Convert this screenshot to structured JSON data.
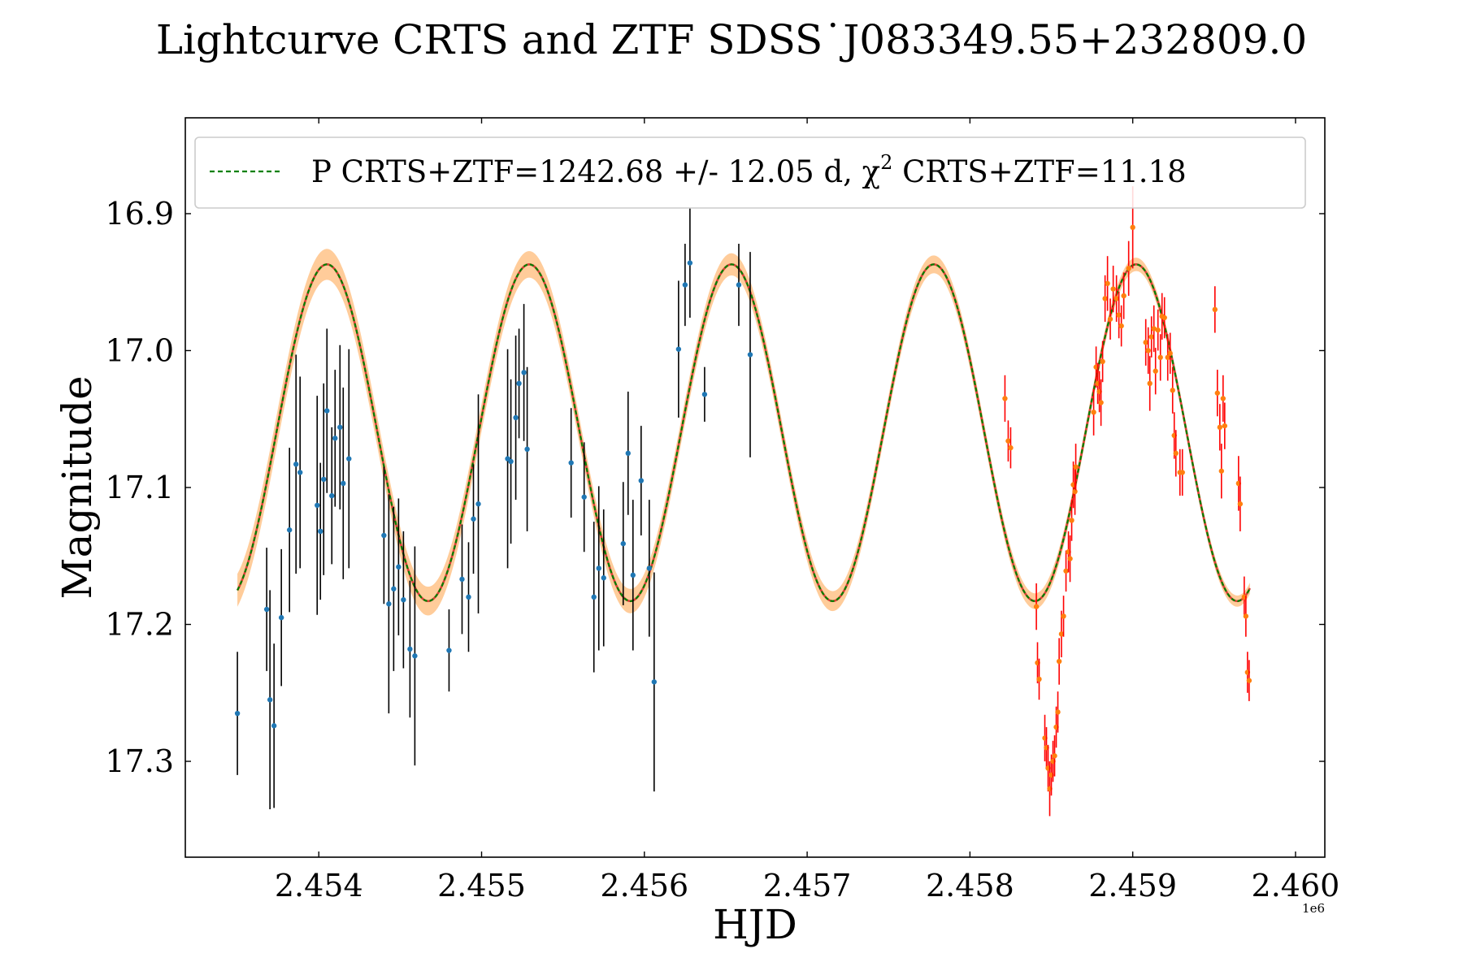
{
  "chart_data": {
    "type": "scatter",
    "title": "Lightcurve CRTS and ZTF SDSS˙J083349.55+232809.0",
    "xlabel": "HJD",
    "ylabel": "Magnitude",
    "x_offset_label": "1e6",
    "x_scale": 1000000,
    "xlim": [
      2453180,
      2460180
    ],
    "ylim": [
      17.37,
      16.83
    ],
    "y_inverted": true,
    "x_ticks": [
      2454000,
      2455000,
      2456000,
      2457000,
      2458000,
      2459000,
      2460000
    ],
    "x_tick_labels": [
      "2.454",
      "2.455",
      "2.456",
      "2.457",
      "2.458",
      "2.459",
      "2.460"
    ],
    "y_ticks": [
      16.9,
      17.0,
      17.1,
      17.2,
      17.3
    ],
    "y_tick_labels": [
      "16.9",
      "17.0",
      "17.1",
      "17.2",
      "17.3"
    ],
    "legend": {
      "location": "upper-left",
      "label_prefix": "P CRTS+ZTF=1242.68 +/- 12.05 d, ",
      "chi_symbol": "χ",
      "chi_exponent": "2",
      "label_suffix": " CRTS+ZTF=11.18"
    },
    "model": {
      "name": "P CRTS+ZTF=1242.68 +/- 12.05 d, χ2 CRTS+ZTF=11.18",
      "period": 1242.68,
      "period_err": 12.05,
      "chi2": 11.18,
      "mean": 17.06,
      "amplitude": 0.123,
      "phase_zero_epoch": 2454050,
      "x_range": [
        2453500,
        2459720
      ],
      "band_width_start": 0.012,
      "band_width_end": 0.004,
      "line_color": "#008000",
      "center_color": "#d62728",
      "band_color": "#ffbb78"
    },
    "series": [
      {
        "name": "CRTS",
        "marker_color": "#1f77b4",
        "errorbar_color": "#000000",
        "points": [
          [
            2453500,
            17.265,
            0.045
          ],
          [
            2453680,
            17.189,
            0.045
          ],
          [
            2453700,
            17.255,
            0.08
          ],
          [
            2453725,
            17.274,
            0.06
          ],
          [
            2453770,
            17.195,
            0.05
          ],
          [
            2453820,
            17.131,
            0.06
          ],
          [
            2453860,
            17.083,
            0.08
          ],
          [
            2453885,
            17.089,
            0.07
          ],
          [
            2453990,
            17.113,
            0.08
          ],
          [
            2454010,
            17.132,
            0.05
          ],
          [
            2454030,
            17.094,
            0.07
          ],
          [
            2454050,
            17.044,
            0.06
          ],
          [
            2454080,
            17.106,
            0.05
          ],
          [
            2454100,
            17.064,
            0.05
          ],
          [
            2454130,
            17.056,
            0.06
          ],
          [
            2454150,
            17.097,
            0.07
          ],
          [
            2454185,
            17.079,
            0.08
          ],
          [
            2454400,
            17.135,
            0.05
          ],
          [
            2454430,
            17.185,
            0.08
          ],
          [
            2454460,
            17.174,
            0.06
          ],
          [
            2454490,
            17.158,
            0.05
          ],
          [
            2454520,
            17.182,
            0.05
          ],
          [
            2454560,
            17.218,
            0.05
          ],
          [
            2454590,
            17.223,
            0.08
          ],
          [
            2454800,
            17.219,
            0.03
          ],
          [
            2454880,
            17.167,
            0.04
          ],
          [
            2454920,
            17.18,
            0.04
          ],
          [
            2454950,
            17.123,
            0.04
          ],
          [
            2454980,
            17.112,
            0.08
          ],
          [
            2455160,
            17.079,
            0.08
          ],
          [
            2455180,
            17.081,
            0.06
          ],
          [
            2455210,
            17.049,
            0.06
          ],
          [
            2455230,
            17.024,
            0.04
          ],
          [
            2455260,
            17.016,
            0.05
          ],
          [
            2455280,
            17.072,
            0.06
          ],
          [
            2455550,
            17.082,
            0.04
          ],
          [
            2455630,
            17.107,
            0.04
          ],
          [
            2455690,
            17.18,
            0.055
          ],
          [
            2455720,
            17.159,
            0.06
          ],
          [
            2455750,
            17.166,
            0.05
          ],
          [
            2455870,
            17.141,
            0.045
          ],
          [
            2455900,
            17.075,
            0.045
          ],
          [
            2455930,
            17.164,
            0.055
          ],
          [
            2455980,
            17.095,
            0.04
          ],
          [
            2456030,
            17.159,
            0.05
          ],
          [
            2456060,
            17.242,
            0.08
          ],
          [
            2456210,
            16.999,
            0.05
          ],
          [
            2456250,
            16.952,
            0.03
          ],
          [
            2456280,
            16.936,
            0.04
          ],
          [
            2456370,
            17.032,
            0.02
          ],
          [
            2456580,
            16.952,
            0.03
          ],
          [
            2456650,
            17.003,
            0.075
          ]
        ]
      },
      {
        "name": "ZTF",
        "marker_color": "#ff7f0e",
        "errorbar_color": "#ff0000",
        "points": [
          [
            2458215,
            17.035,
            0.017
          ],
          [
            2458235,
            17.066,
            0.015
          ],
          [
            2458250,
            17.071,
            0.015
          ],
          [
            2458408,
            17.187,
            0.017
          ],
          [
            2458415,
            17.228,
            0.015
          ],
          [
            2458425,
            17.24,
            0.015
          ],
          [
            2458460,
            17.283,
            0.017
          ],
          [
            2458470,
            17.29,
            0.015
          ],
          [
            2458480,
            17.305,
            0.017
          ],
          [
            2458490,
            17.32,
            0.02
          ],
          [
            2458500,
            17.31,
            0.015
          ],
          [
            2458510,
            17.3,
            0.015
          ],
          [
            2458520,
            17.296,
            0.015
          ],
          [
            2458530,
            17.275,
            0.015
          ],
          [
            2458540,
            17.264,
            0.015
          ],
          [
            2458548,
            17.227,
            0.017
          ],
          [
            2458562,
            17.207,
            0.017
          ],
          [
            2458575,
            17.194,
            0.015
          ],
          [
            2458590,
            17.161,
            0.015
          ],
          [
            2458605,
            17.147,
            0.015
          ],
          [
            2458615,
            17.152,
            0.017
          ],
          [
            2458625,
            17.124,
            0.015
          ],
          [
            2458635,
            17.098,
            0.017
          ],
          [
            2458645,
            17.103,
            0.017
          ],
          [
            2458650,
            17.085,
            0.017
          ],
          [
            2458760,
            17.045,
            0.017
          ],
          [
            2458775,
            17.012,
            0.015
          ],
          [
            2458785,
            17.024,
            0.015
          ],
          [
            2458795,
            17.03,
            0.015
          ],
          [
            2458805,
            17.038,
            0.017
          ],
          [
            2458815,
            17.008,
            0.015
          ],
          [
            2458830,
            16.962,
            0.017
          ],
          [
            2458845,
            16.951,
            0.02
          ],
          [
            2458862,
            16.977,
            0.015
          ],
          [
            2458880,
            16.955,
            0.017
          ],
          [
            2458900,
            16.962,
            0.017
          ],
          [
            2458915,
            16.974,
            0.017
          ],
          [
            2458930,
            16.982,
            0.015
          ],
          [
            2458945,
            16.96,
            0.017
          ],
          [
            2458975,
            16.94,
            0.02
          ],
          [
            2459000,
            16.91,
            0.03
          ],
          [
            2459080,
            16.994,
            0.017
          ],
          [
            2459095,
            17.0,
            0.017
          ],
          [
            2459105,
            17.024,
            0.02
          ],
          [
            2459115,
            16.99,
            0.015
          ],
          [
            2459130,
            16.984,
            0.017
          ],
          [
            2459140,
            17.015,
            0.017
          ],
          [
            2459155,
            16.985,
            0.015
          ],
          [
            2459170,
            17.005,
            0.017
          ],
          [
            2459180,
            16.975,
            0.017
          ],
          [
            2459195,
            16.976,
            0.015
          ],
          [
            2459215,
            17.005,
            0.017
          ],
          [
            2459230,
            17.002,
            0.015
          ],
          [
            2459245,
            17.029,
            0.017
          ],
          [
            2459255,
            17.062,
            0.017
          ],
          [
            2459265,
            17.075,
            0.017
          ],
          [
            2459290,
            17.089,
            0.017
          ],
          [
            2459305,
            17.089,
            0.017
          ],
          [
            2459505,
            16.97,
            0.017
          ],
          [
            2459520,
            17.031,
            0.017
          ],
          [
            2459535,
            17.056,
            0.017
          ],
          [
            2459545,
            17.088,
            0.02
          ],
          [
            2459555,
            17.035,
            0.017
          ],
          [
            2459565,
            17.055,
            0.017
          ],
          [
            2459650,
            17.097,
            0.02
          ],
          [
            2459660,
            17.112,
            0.02
          ],
          [
            2459685,
            17.18,
            0.015
          ],
          [
            2459695,
            17.194,
            0.015
          ],
          [
            2459705,
            17.235,
            0.015
          ],
          [
            2459715,
            17.241,
            0.015
          ]
        ]
      }
    ]
  }
}
